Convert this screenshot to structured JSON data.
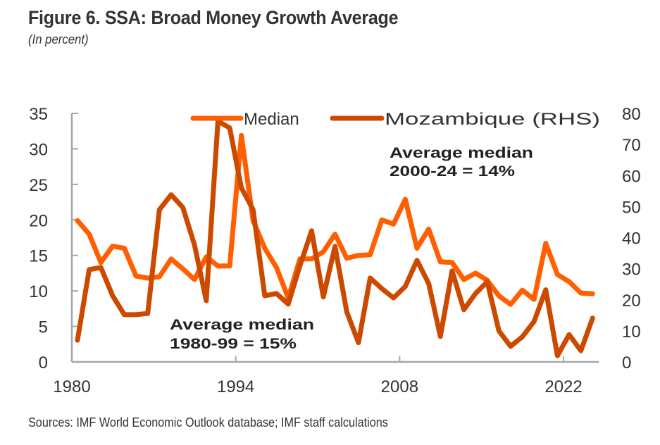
{
  "title": "Figure 6. SSA: Broad Money Growth Average",
  "subtitle": "(In percent)",
  "source": "Sources: IMF World Economic Outlook database; IMF staff calculations",
  "colors": {
    "median": "#ff5f00",
    "mozambique": "#cc4a00",
    "axis": "#a6a6a6",
    "text": "#333333"
  },
  "chart_data": {
    "type": "line",
    "title": "Figure 6. SSA: Broad Money Growth Average",
    "subtitle": "(In percent)",
    "xlabel": "",
    "ylabel": "",
    "x": [
      1980,
      1981,
      1982,
      1983,
      1984,
      1985,
      1986,
      1987,
      1988,
      1989,
      1990,
      1991,
      1992,
      1993,
      1994,
      1995,
      1996,
      1997,
      1998,
      1999,
      2000,
      2001,
      2002,
      2003,
      2004,
      2005,
      2006,
      2007,
      2008,
      2009,
      2010,
      2011,
      2012,
      2013,
      2014,
      2015,
      2016,
      2017,
      2018,
      2019,
      2020,
      2021,
      2022,
      2023,
      2024
    ],
    "x_ticks": [
      "1980",
      "1994",
      "2008",
      "2022"
    ],
    "x_tick_values": [
      1980,
      1994,
      2008,
      2022
    ],
    "xlim": [
      1979.5,
      2025
    ],
    "ylim_left": [
      0,
      35
    ],
    "y_ticks_left": [
      0,
      5,
      10,
      15,
      20,
      25,
      30,
      35
    ],
    "ylim_right": [
      0,
      80
    ],
    "y_ticks_right": [
      0,
      10,
      20,
      30,
      40,
      50,
      60,
      70,
      80
    ],
    "grid": false,
    "legend_position": "top",
    "series": [
      {
        "name": "Median",
        "axis": "left",
        "values": [
          19.9,
          18.0,
          14.0,
          16.3,
          16.0,
          12.1,
          11.8,
          12.0,
          14.5,
          13.1,
          11.6,
          14.8,
          13.5,
          13.5,
          31.9,
          19.9,
          16.0,
          13.3,
          9.0,
          14.5,
          14.5,
          15.5,
          18.0,
          14.6,
          15.0,
          15.1,
          20.0,
          19.4,
          22.9,
          16.0,
          18.7,
          14.1,
          14.0,
          11.6,
          12.5,
          11.5,
          9.3,
          8.1,
          10.1,
          8.8,
          16.7,
          12.3,
          11.3,
          9.7,
          9.6
        ]
      },
      {
        "name": "Mozambique (RHS)",
        "axis": "right",
        "values": [
          7.0,
          29.7,
          30.4,
          21.3,
          15.2,
          15.2,
          15.6,
          49.0,
          53.8,
          49.7,
          37.6,
          19.7,
          77.5,
          75.3,
          56.0,
          49.0,
          21.3,
          22.0,
          18.6,
          31.0,
          42.2,
          20.9,
          37.2,
          16.1,
          6.2,
          27.0,
          23.6,
          20.6,
          24.3,
          32.7,
          25.2,
          8.2,
          29.3,
          16.8,
          22.0,
          25.8,
          10.0,
          5.0,
          8.1,
          13.0,
          23.2,
          2.0,
          8.8,
          3.6,
          14.1
        ]
      }
    ],
    "annotations": [
      {
        "line1": "Average median",
        "line2": "2000-24 = 14%"
      },
      {
        "line1": "Average median",
        "line2": "1980-99 = 15%"
      }
    ]
  }
}
